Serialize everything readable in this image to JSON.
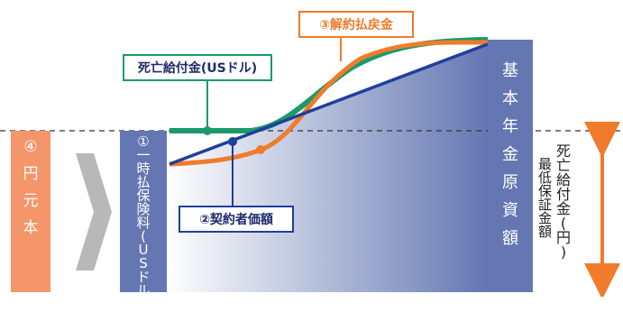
{
  "colors": {
    "orange_box": "#f4966a",
    "navy_box": "#6477b2",
    "green_line": "#1a9a6a",
    "orange_line": "#f07b2a",
    "blue_line": "#1f3f9c",
    "arrow_orange": "#f07b2a",
    "chevron_gray": "#b8b8b8",
    "dashed_line": "#333333"
  },
  "labels": {
    "yen_principal": [
      "④",
      "円",
      "元",
      "本"
    ],
    "lump_sum_premium": [
      "①",
      "一",
      "時",
      "払",
      "保",
      "険",
      "料",
      "(",
      "U",
      "S",
      "ド",
      "ル",
      ")"
    ],
    "basic_amount": [
      "基",
      "本",
      "年",
      "金",
      "原",
      "資",
      "額"
    ],
    "death_benefit_usd": "死亡給付金(USドル)",
    "surrender_value": "③解約払戻金",
    "contract_value": "②契約者価額",
    "min_guaranteed_1": [
      "死",
      "亡",
      "給",
      "付",
      "金",
      "(",
      "円",
      ")"
    ],
    "min_guaranteed_2": [
      "最",
      "低",
      "保",
      "証",
      "金",
      "額"
    ]
  }
}
